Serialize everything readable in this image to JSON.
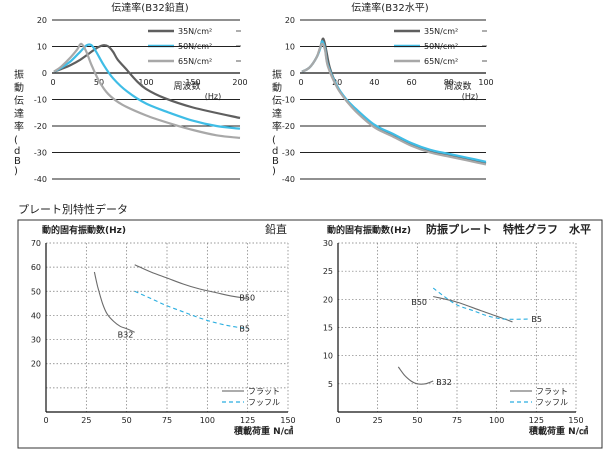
{
  "section_title": "プレート別特性データ",
  "chart_data": [
    {
      "id": "c1",
      "type": "line",
      "title": "伝達率(B32鉛直)",
      "ylabel": "振動伝達率(dB)",
      "xlabel": "周波数(Hz)",
      "xlabel_line1": "周波数",
      "xlabel_line2": "(Hz)",
      "xlim": [
        0,
        200
      ],
      "ylim": [
        -40,
        20
      ],
      "xticks": [
        0,
        50,
        100,
        150,
        200
      ],
      "xtick_labels": [
        "0",
        "50",
        "100",
        "150",
        "200"
      ],
      "yticks": [
        20,
        10,
        0,
        -10,
        -20,
        -30,
        -40
      ],
      "grid": "horizontal",
      "legend_position": "top-right",
      "series": [
        {
          "name": "35N/cm²",
          "color": "#5f5f5f",
          "x": [
            2,
            10,
            20,
            30,
            40,
            48,
            55,
            60,
            65,
            70,
            80,
            90,
            100,
            120,
            150,
            200
          ],
          "y": [
            0.5,
            1.5,
            3,
            5,
            7.5,
            9.5,
            10.5,
            10,
            8,
            5,
            1,
            -3,
            -6,
            -9.5,
            -13,
            -17
          ]
        },
        {
          "name": "50N/cm²",
          "color": "#3fbde6",
          "x": [
            2,
            10,
            20,
            30,
            37,
            42,
            47,
            55,
            65,
            80,
            100,
            125,
            150,
            175,
            200
          ],
          "y": [
            0.5,
            2,
            4.5,
            8,
            10.5,
            10.5,
            8,
            3,
            -2,
            -7,
            -11.5,
            -15,
            -18,
            -20,
            -21
          ]
        },
        {
          "name": "65N/cm²",
          "color": "#a8a8a8",
          "x": [
            2,
            10,
            20,
            27,
            31,
            36,
            42,
            50,
            60,
            75,
            100,
            125,
            150,
            175,
            200
          ],
          "y": [
            0.5,
            2.5,
            6,
            9,
            11,
            8.5,
            3,
            -3,
            -8,
            -12,
            -16,
            -19,
            -21.5,
            -23.5,
            -24.5
          ]
        }
      ]
    },
    {
      "id": "c2",
      "type": "line",
      "title": "伝達率(B32水平)",
      "ylabel": "振動伝達率(dB)",
      "xlabel": "周波数(Hz)",
      "xlabel_line1": "周波数",
      "xlabel_line2": "(Hz)",
      "xlim": [
        0,
        100
      ],
      "ylim": [
        -40,
        20
      ],
      "xticks": [
        0,
        20,
        40,
        60,
        80,
        100
      ],
      "xtick_labels": [
        "0",
        "20",
        "40",
        "60",
        "80",
        "100"
      ],
      "yticks": [
        20,
        10,
        0,
        -10,
        -20,
        -30,
        -40
      ],
      "grid": "horizontal",
      "legend_position": "top-right",
      "series": [
        {
          "name": "35N/cm²",
          "color": "#5f5f5f",
          "x": [
            1,
            5,
            9,
            11,
            12.5,
            14,
            16,
            20,
            25,
            30,
            40,
            50,
            60,
            70,
            80,
            90,
            100
          ],
          "y": [
            0.5,
            2,
            6,
            10,
            13,
            9,
            2,
            -5,
            -10.5,
            -14,
            -20,
            -23.5,
            -27,
            -29.5,
            -31,
            -32.5,
            -34
          ]
        },
        {
          "name": "50N/cm²",
          "color": "#3fbde6",
          "x": [
            1,
            5,
            9,
            11,
            12,
            13.5,
            15,
            20,
            25,
            30,
            40,
            50,
            60,
            70,
            80,
            90,
            100
          ],
          "y": [
            0.5,
            2,
            6,
            9.5,
            12,
            9,
            3,
            -5,
            -10,
            -13.5,
            -19.5,
            -23,
            -26.5,
            -29,
            -30.5,
            -32,
            -33.5
          ]
        },
        {
          "name": "65N/cm²",
          "color": "#a8a8a8",
          "x": [
            1,
            5,
            9,
            10.5,
            12,
            13.5,
            15,
            20,
            25,
            30,
            40,
            50,
            60,
            70,
            80,
            90,
            100
          ],
          "y": [
            0.5,
            2,
            6,
            9,
            11,
            8.5,
            2.5,
            -5.5,
            -10.5,
            -14.5,
            -20.5,
            -24,
            -27.5,
            -30,
            -31.5,
            -33,
            -34.5
          ]
        }
      ]
    },
    {
      "id": "c3",
      "type": "line",
      "title": "鉛直",
      "ylabel": "動的固有振動数(Hz)",
      "xlabel": "積載荷重 N/㎠",
      "xlim": [
        0,
        150
      ],
      "ylim": [
        0,
        70
      ],
      "xticks": [
        0,
        25,
        50,
        75,
        100,
        125,
        150
      ],
      "xtick_labels": [
        "0",
        "25",
        "50",
        "75",
        "100",
        "125",
        "150"
      ],
      "yticks": [
        10,
        20,
        30,
        40,
        50,
        60,
        70
      ],
      "ytick_labels": [
        "",
        "20",
        "30",
        "40",
        "50",
        "60",
        "70"
      ],
      "grid": "dotted",
      "legend_position": "bottom-right",
      "legend": [
        {
          "label": "フラット",
          "color": "#7a7a7a",
          "dashed": false
        },
        {
          "label": "フッフル",
          "color": "#2aaee0",
          "dashed": true
        }
      ],
      "series": [
        {
          "name": "B50",
          "color": "#6b6b6b",
          "dashed": false,
          "x": [
            55,
            65,
            75,
            85,
            95,
            105,
            115,
            125
          ],
          "y": [
            61,
            58,
            55.5,
            53,
            51,
            49.5,
            48,
            47
          ]
        },
        {
          "name": "B5",
          "color": "#2aaee0",
          "dashed": true,
          "x": [
            55,
            65,
            75,
            85,
            95,
            105,
            115,
            125
          ],
          "y": [
            50,
            47,
            44,
            41.5,
            39,
            37,
            35.5,
            34.5
          ]
        },
        {
          "name": "B32",
          "color": "#6b6b6b",
          "dashed": false,
          "x": [
            30,
            32,
            35,
            38,
            42,
            46,
            50,
            55
          ],
          "y": [
            58,
            52,
            45,
            40.5,
            37.5,
            35.5,
            34.5,
            33
          ]
        }
      ]
    },
    {
      "id": "c4",
      "type": "line",
      "title": "防振プレート　特性グラフ　水平",
      "ylabel": "動的固有振動数(Hz)",
      "xlabel": "積載荷重 N/㎠",
      "xlim": [
        0,
        150
      ],
      "ylim": [
        0,
        30
      ],
      "xticks": [
        0,
        25,
        50,
        75,
        100,
        125,
        150
      ],
      "xtick_labels": [
        "0",
        "25",
        "50",
        "75",
        "100",
        "125",
        "150"
      ],
      "yticks": [
        5,
        10,
        15,
        20,
        25,
        30
      ],
      "grid": "dotted",
      "legend_position": "bottom-right",
      "legend": [
        {
          "label": "フラット",
          "color": "#7a7a7a",
          "dashed": false
        },
        {
          "label": "フッフル",
          "color": "#2aaee0",
          "dashed": true
        }
      ],
      "series": [
        {
          "name": "B50",
          "color": "#6b6b6b",
          "dashed": false,
          "x": [
            60,
            75,
            90,
            100,
            110
          ],
          "y": [
            20.5,
            19.5,
            18,
            17,
            16
          ]
        },
        {
          "name": "B5",
          "color": "#2aaee0",
          "dashed": true,
          "x": [
            60,
            67,
            75,
            85,
            95,
            105,
            120
          ],
          "y": [
            22,
            20.5,
            19,
            18,
            17,
            16.5,
            16.5
          ]
        },
        {
          "name": "B32",
          "color": "#6b6b6b",
          "dashed": false,
          "x": [
            38,
            42,
            46,
            50,
            55,
            60
          ],
          "y": [
            8,
            6.5,
            5.5,
            5,
            5,
            5.5
          ]
        }
      ]
    }
  ]
}
